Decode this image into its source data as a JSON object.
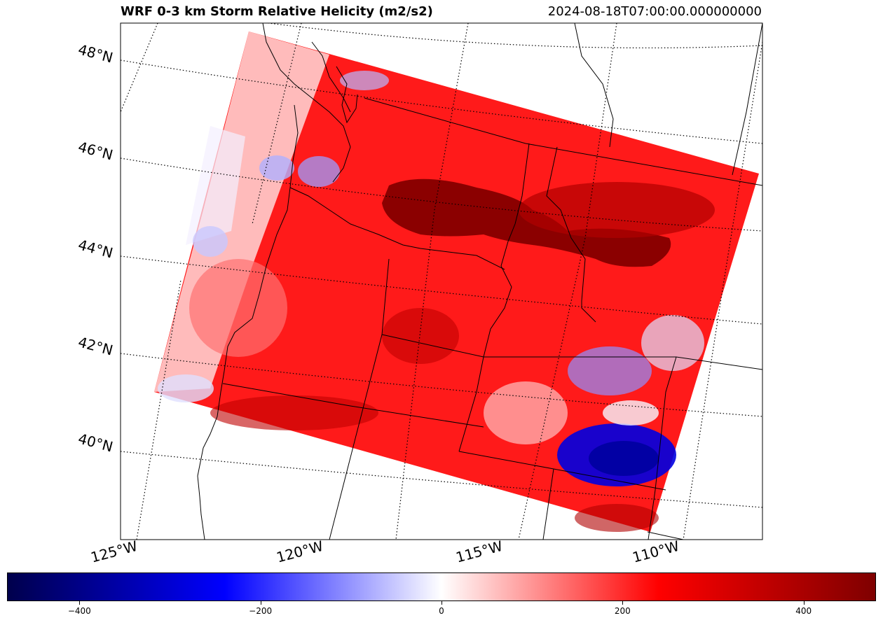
{
  "header": {
    "title": "WRF 0-3 km Storm Relative Helicity (m2/s2)",
    "timestamp": "2024-08-18T07:00:00.000000000"
  },
  "map": {
    "projection": "Lambert Conformal",
    "latitude_labels": [
      "48°N",
      "46°N",
      "44°N",
      "42°N",
      "40°N"
    ],
    "longitude_labels": [
      "125°W",
      "120°W",
      "115°W",
      "110°W"
    ],
    "gridline_style": "dotted",
    "field": "0-3 km Storm Relative Helicity",
    "colors": {
      "negative_max": "#00004c",
      "negative": "#0000ff",
      "zero": "#ffffff",
      "positive": "#ff0000",
      "positive_max": "#7f0000"
    }
  },
  "colorbar": {
    "colormap": "seismic",
    "range": [
      -480,
      480
    ],
    "tick_labels": [
      "−400",
      "−200",
      "0",
      "200",
      "400"
    ],
    "tick_values": [
      -400,
      -200,
      0,
      200,
      400
    ]
  }
}
